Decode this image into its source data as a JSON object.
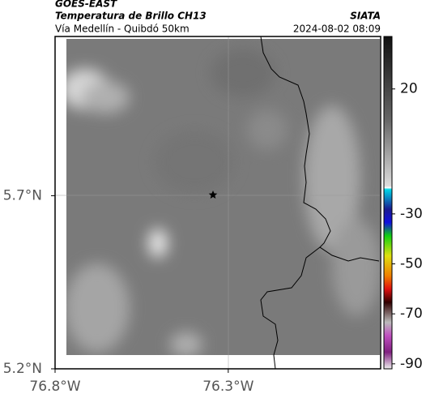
{
  "header": {
    "product": "GOES-EAST",
    "title": "Temperatura de Brillo CH13",
    "subtitle": "Vía Medellín - Quibdó 50km",
    "source": "SIATA",
    "datetime": "2024-08-02 08:09"
  },
  "map": {
    "xlim": [
      -76.8,
      -75.86
    ],
    "ylim": [
      5.2,
      6.16
    ],
    "xticks": [
      {
        "value": -76.8,
        "label": "76.8°W"
      },
      {
        "value": -76.3,
        "label": "76.3°W"
      }
    ],
    "yticks": [
      {
        "value": 5.2,
        "label": "5.2°N"
      },
      {
        "value": 5.7,
        "label": "5.7°N"
      }
    ],
    "colorbar": {
      "clim": [
        -92,
        41
      ],
      "ticks": [
        20,
        -30,
        -50,
        -70,
        -90
      ]
    }
  }
}
